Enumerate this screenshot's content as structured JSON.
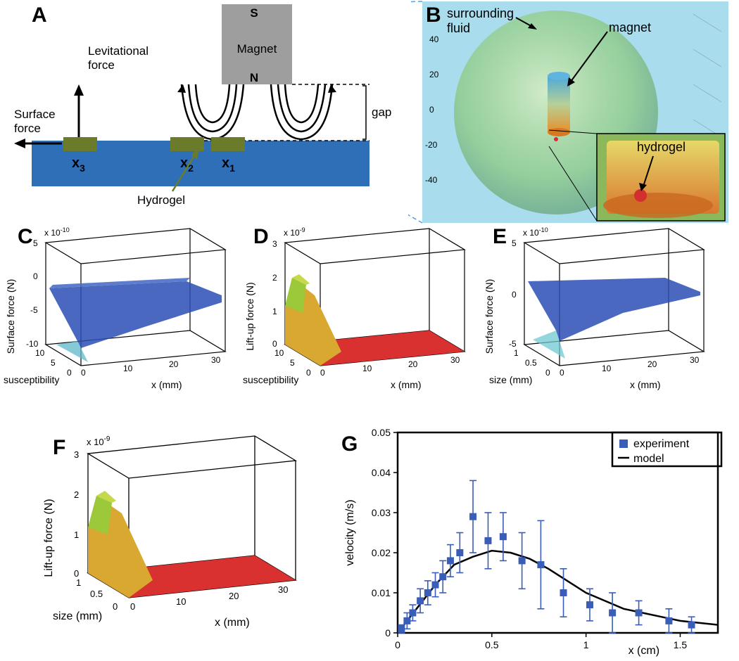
{
  "panels": {
    "A": {
      "label": "A",
      "labels": {
        "magnet": "Magnet",
        "S": "S",
        "N": "N",
        "gap": "gap",
        "levitational": "Levitational\nforce",
        "surface": "Surface\nforce",
        "hydrogel": "Hydrogel",
        "x1": "x",
        "x1sub": "1",
        "x2": "x",
        "x2sub": "2",
        "x3": "x",
        "x3sub": "3"
      },
      "colors": {
        "magnet": "#9e9e9e",
        "fluid": "#2e6fb8",
        "hydrogel": "#6a7c2c",
        "text": "#000000"
      }
    },
    "B": {
      "label": "B",
      "labels": {
        "surrounding": "surrounding",
        "fluid": "fluid",
        "magnet": "magnet",
        "hydrogel": "hydrogel"
      },
      "axis_ticks": [
        "40",
        "20",
        "0",
        "-20",
        "-40"
      ],
      "colors": {
        "bg": "#a9dced",
        "sphere_outer": "#c9e8a8",
        "sphere_inner": "#8cc97a",
        "magnet_top": "#4ea8d8",
        "magnet_bottom": "#e8b03a",
        "hydrogel": "#d32f2f",
        "inset_bg": "#e6c54a",
        "text": "#000000"
      }
    },
    "C": {
      "label": "C",
      "type": "surface3d",
      "zlabel": "Surface force (N)",
      "z_exp": "x 10",
      "z_exp_sup": "-10",
      "xlabel": "x (mm)",
      "ylabel": "susceptibility",
      "xticks": [
        "0",
        "10",
        "20",
        "30"
      ],
      "yticks": [
        "0",
        "5",
        "10"
      ],
      "zticks": [
        "-10",
        "-5",
        "0",
        "5"
      ],
      "colors": {
        "surface_high": "#2a4db5",
        "surface_low": "#7bd4d9",
        "box": "#000000"
      }
    },
    "D": {
      "label": "D",
      "type": "surface3d",
      "zlabel": "Lift-up force (N)",
      "z_exp": "x 10",
      "z_exp_sup": "-9",
      "xlabel": "x (mm)",
      "ylabel": "susceptibility",
      "xticks": [
        "0",
        "10",
        "20",
        "30"
      ],
      "yticks": [
        "0",
        "5",
        "10"
      ],
      "zticks": [
        "0",
        "1",
        "2",
        "3"
      ],
      "colors": {
        "surface_peak": "#9bc93a",
        "surface_mid": "#d9a830",
        "surface_floor": "#d93030",
        "box": "#000000"
      }
    },
    "E": {
      "label": "E",
      "type": "surface3d",
      "zlabel": "Surface force (N)",
      "z_exp": "x 10",
      "z_exp_sup": "-10",
      "xlabel": "x (mm)",
      "ylabel": "size (mm)",
      "xticks": [
        "0",
        "10",
        "20",
        "30"
      ],
      "yticks": [
        "0",
        "0.5",
        "1"
      ],
      "zticks": [
        "-5",
        "0",
        "5"
      ],
      "colors": {
        "surface_high": "#2a4db5",
        "surface_low": "#6fc8cf",
        "box": "#000000"
      }
    },
    "F": {
      "label": "F",
      "type": "surface3d",
      "zlabel": "Lift-up force (N)",
      "z_exp": "x 10",
      "z_exp_sup": "-9",
      "xlabel": "x (mm)",
      "ylabel": "size (mm)",
      "xticks": [
        "0",
        "10",
        "20",
        "30"
      ],
      "yticks": [
        "0",
        "0.5",
        "1"
      ],
      "zticks": [
        "0",
        "1",
        "2",
        "3"
      ],
      "colors": {
        "surface_peak": "#9bc93a",
        "surface_mid": "#d9a830",
        "surface_floor": "#d93030",
        "box": "#000000"
      }
    },
    "G": {
      "label": "G",
      "type": "scatter_line",
      "xlabel": "x (cm)",
      "ylabel": "velocity (m/s)",
      "xlim": [
        0,
        1.7
      ],
      "ylim": [
        0,
        0.05
      ],
      "xticks": [
        "0",
        "0.5",
        "1",
        "1.5"
      ],
      "yticks": [
        "0",
        "0.01",
        "0.02",
        "0.03",
        "0.04",
        "0.05"
      ],
      "legend": {
        "experiment": "experiment",
        "model": "model"
      },
      "experiment_points": [
        {
          "x": 0.02,
          "y": 0.001,
          "err": 0.001
        },
        {
          "x": 0.05,
          "y": 0.003,
          "err": 0.002
        },
        {
          "x": 0.08,
          "y": 0.005,
          "err": 0.002
        },
        {
          "x": 0.12,
          "y": 0.008,
          "err": 0.003
        },
        {
          "x": 0.16,
          "y": 0.01,
          "err": 0.003
        },
        {
          "x": 0.2,
          "y": 0.012,
          "err": 0.003
        },
        {
          "x": 0.24,
          "y": 0.014,
          "err": 0.004
        },
        {
          "x": 0.28,
          "y": 0.018,
          "err": 0.004
        },
        {
          "x": 0.33,
          "y": 0.02,
          "err": 0.005
        },
        {
          "x": 0.4,
          "y": 0.029,
          "err": 0.009
        },
        {
          "x": 0.48,
          "y": 0.023,
          "err": 0.007
        },
        {
          "x": 0.56,
          "y": 0.024,
          "err": 0.006
        },
        {
          "x": 0.66,
          "y": 0.018,
          "err": 0.007
        },
        {
          "x": 0.76,
          "y": 0.017,
          "err": 0.011
        },
        {
          "x": 0.88,
          "y": 0.01,
          "err": 0.006
        },
        {
          "x": 1.02,
          "y": 0.007,
          "err": 0.004
        },
        {
          "x": 1.14,
          "y": 0.005,
          "err": 0.005
        },
        {
          "x": 1.28,
          "y": 0.005,
          "err": 0.003
        },
        {
          "x": 1.44,
          "y": 0.003,
          "err": 0.003
        },
        {
          "x": 1.56,
          "y": 0.002,
          "err": 0.002
        }
      ],
      "model_curve": [
        {
          "x": 0.0,
          "y": 0.0
        },
        {
          "x": 0.1,
          "y": 0.006
        },
        {
          "x": 0.2,
          "y": 0.012
        },
        {
          "x": 0.3,
          "y": 0.017
        },
        {
          "x": 0.4,
          "y": 0.019
        },
        {
          "x": 0.5,
          "y": 0.0205
        },
        {
          "x": 0.6,
          "y": 0.02
        },
        {
          "x": 0.7,
          "y": 0.0185
        },
        {
          "x": 0.8,
          "y": 0.016
        },
        {
          "x": 0.9,
          "y": 0.013
        },
        {
          "x": 1.0,
          "y": 0.01
        },
        {
          "x": 1.1,
          "y": 0.008
        },
        {
          "x": 1.2,
          "y": 0.006
        },
        {
          "x": 1.3,
          "y": 0.005
        },
        {
          "x": 1.4,
          "y": 0.004
        },
        {
          "x": 1.5,
          "y": 0.003
        },
        {
          "x": 1.6,
          "y": 0.0025
        },
        {
          "x": 1.7,
          "y": 0.002
        }
      ],
      "colors": {
        "marker": "#3a5db8",
        "line": "#000000",
        "box": "#000000"
      }
    }
  }
}
